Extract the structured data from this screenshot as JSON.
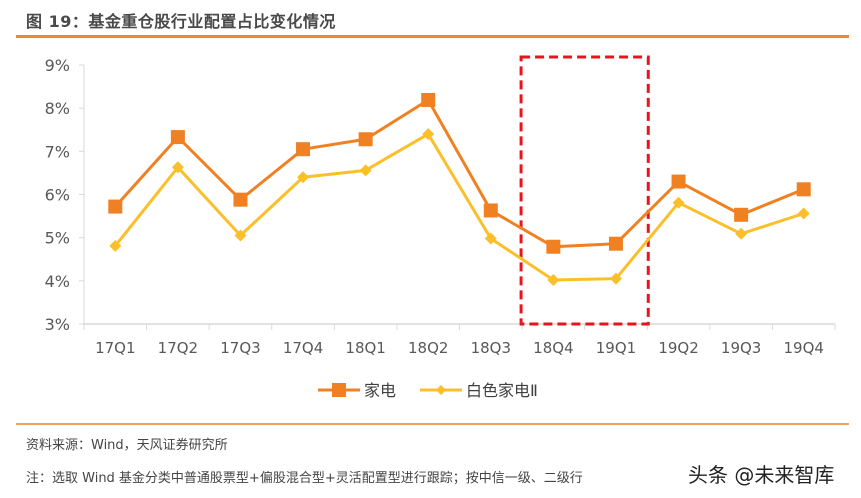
{
  "header": {
    "figure_title": "图 19：基金重仓股行业配置占比变化情况"
  },
  "chart_data": {
    "type": "line",
    "title": "基金重仓股行业配置占比变化情况",
    "xlabel": "",
    "ylabel": "",
    "categories": [
      "17Q1",
      "17Q2",
      "17Q3",
      "17Q4",
      "18Q1",
      "18Q2",
      "18Q3",
      "18Q4",
      "19Q1",
      "19Q2",
      "19Q3",
      "19Q4"
    ],
    "series": [
      {
        "name": "家电",
        "color": "#f08122",
        "marker": "square",
        "values": [
          5.72,
          7.33,
          5.88,
          7.05,
          7.28,
          8.19,
          5.63,
          4.79,
          4.86,
          6.3,
          5.53,
          6.12
        ]
      },
      {
        "name": "白色家电Ⅱ",
        "color": "#fbbf2a",
        "marker": "diamond",
        "values": [
          4.81,
          6.63,
          5.05,
          6.4,
          6.56,
          7.4,
          4.98,
          4.02,
          4.05,
          5.81,
          5.09,
          5.56
        ]
      }
    ],
    "yticks": [
      "3%",
      "4%",
      "5%",
      "6%",
      "7%",
      "8%",
      "9%"
    ],
    "ylim": [
      3,
      9
    ],
    "unit": "%",
    "grid": false,
    "legend_position": "bottom",
    "annotations": [
      {
        "type": "dashed-rectangle",
        "color": "#e8141b",
        "covers": [
          "18Q4",
          "19Q1"
        ]
      }
    ]
  },
  "footer": {
    "source": "资料来源：Wind，天风证券研究所",
    "note": "注：选取 Wind 基金分类中普通股票型+偏股混合型+灵活配置型进行跟踪；按中信一级、二级行",
    "watermark": "头条 @未来智库"
  }
}
